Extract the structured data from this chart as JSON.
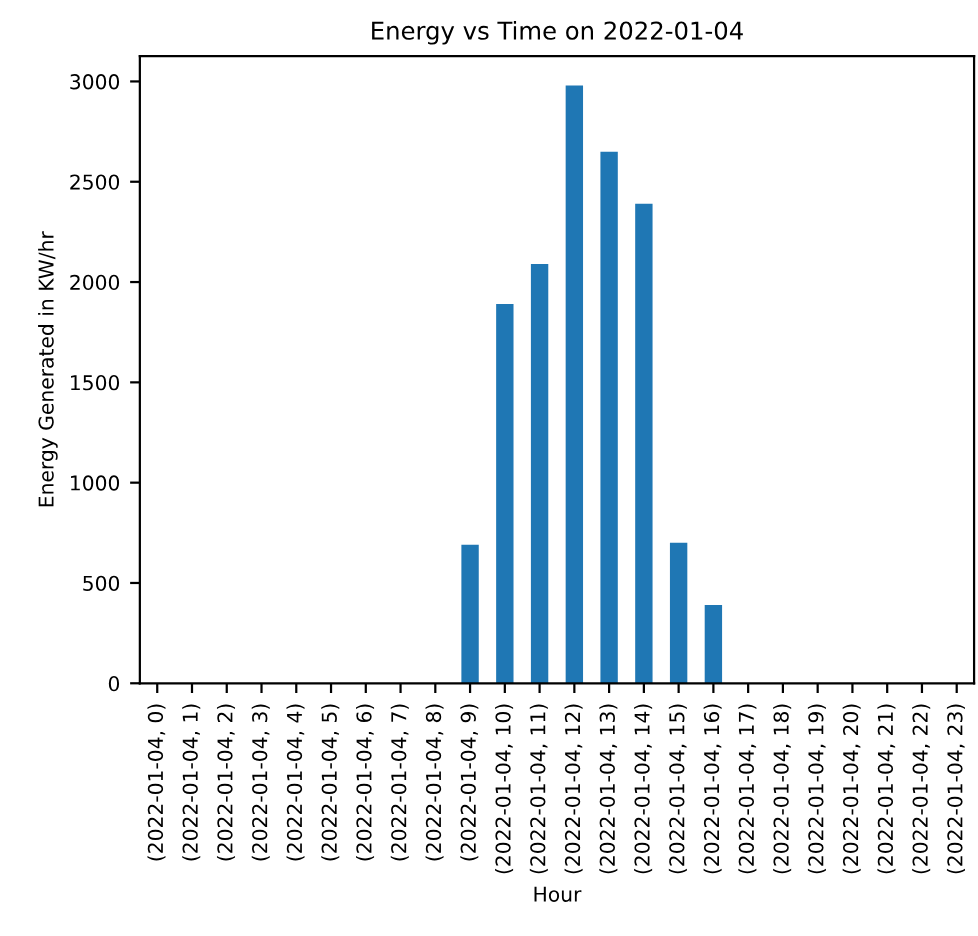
{
  "chart_data": {
    "type": "bar",
    "title": "Energy vs Time on 2022-01-04",
    "xlabel": "Hour",
    "ylabel": "Energy Generated in KW/hr",
    "categories": [
      "(2022-01-04, 0)",
      "(2022-01-04, 1)",
      "(2022-01-04, 2)",
      "(2022-01-04, 3)",
      "(2022-01-04, 4)",
      "(2022-01-04, 5)",
      "(2022-01-04, 6)",
      "(2022-01-04, 7)",
      "(2022-01-04, 8)",
      "(2022-01-04, 9)",
      "(2022-01-04, 10)",
      "(2022-01-04, 11)",
      "(2022-01-04, 12)",
      "(2022-01-04, 13)",
      "(2022-01-04, 14)",
      "(2022-01-04, 15)",
      "(2022-01-04, 16)",
      "(2022-01-04, 17)",
      "(2022-01-04, 18)",
      "(2022-01-04, 19)",
      "(2022-01-04, 20)",
      "(2022-01-04, 21)",
      "(2022-01-04, 22)",
      "(2022-01-04, 23)"
    ],
    "values": [
      0,
      0,
      0,
      0,
      0,
      0,
      0,
      0,
      0,
      690,
      1890,
      2090,
      2980,
      2650,
      2390,
      700,
      390,
      0,
      0,
      0,
      0,
      0,
      0,
      0
    ],
    "color": "#1f77b4",
    "ylim": [
      0,
      3126
    ],
    "yticks": [
      0,
      500,
      1000,
      1500,
      2000,
      2500,
      3000
    ],
    "grid": false,
    "legend": false
  }
}
